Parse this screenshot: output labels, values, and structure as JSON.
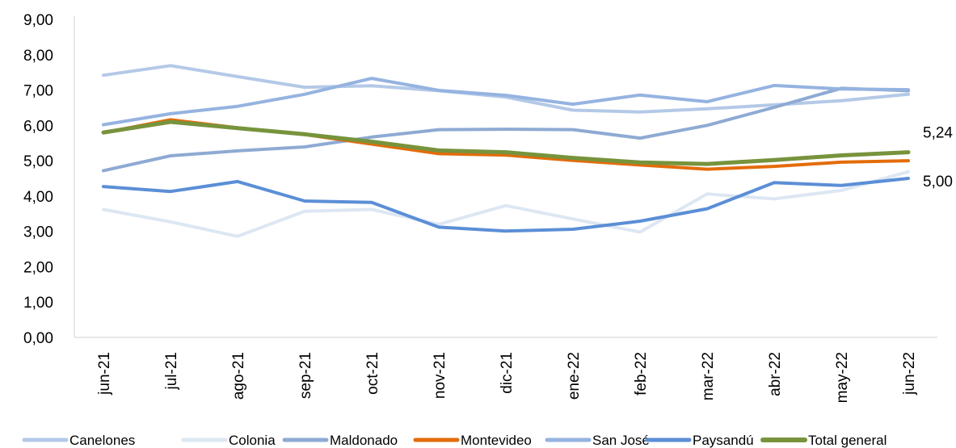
{
  "chart_data": {
    "type": "line",
    "categories": [
      "jun-21",
      "jul-21",
      "ago-21",
      "sep-21",
      "oct-21",
      "nov-21",
      "dic-21",
      "ene-22",
      "feb-22",
      "mar-22",
      "abr-22",
      "may-22",
      "jun-22"
    ],
    "y_ticks": [
      "0,00",
      "1,00",
      "2,00",
      "3,00",
      "4,00",
      "5,00",
      "6,00",
      "7,00",
      "8,00",
      "9,00"
    ],
    "ylim": [
      0,
      9
    ],
    "grid": false,
    "legend_position": "bottom",
    "series": [
      {
        "name": "Canelones",
        "color": "#b4c9e7",
        "width": 4,
        "values": [
          7.42,
          7.69,
          7.38,
          7.08,
          7.12,
          6.98,
          6.8,
          6.43,
          6.38,
          6.47,
          6.58,
          6.7,
          6.88
        ]
      },
      {
        "name": "Colonia",
        "color": "#dde7f3",
        "width": 4,
        "values": [
          3.62,
          3.27,
          2.86,
          3.57,
          3.62,
          3.2,
          3.73,
          3.35,
          2.98,
          4.06,
          3.92,
          4.16,
          4.69
        ]
      },
      {
        "name": "Maldonado",
        "color": "#8eaad3",
        "width": 4,
        "values": [
          4.72,
          5.14,
          5.28,
          5.39,
          5.67,
          5.88,
          5.89,
          5.88,
          5.64,
          6.0,
          6.51,
          7.05,
          6.98
        ]
      },
      {
        "name": "Montevideo",
        "color": "#e36c0a",
        "width": 4,
        "values": [
          5.79,
          6.16,
          5.93,
          5.74,
          5.47,
          5.2,
          5.16,
          5.01,
          4.88,
          4.76,
          4.84,
          4.96,
          5.0
        ]
      },
      {
        "name": "San José",
        "color": "#95b3e0",
        "width": 4,
        "values": [
          6.02,
          6.33,
          6.54,
          6.88,
          7.33,
          6.99,
          6.85,
          6.6,
          6.86,
          6.67,
          7.13,
          7.03,
          7.01
        ]
      },
      {
        "name": "Paysandú",
        "color": "#5b8ed6",
        "width": 4,
        "values": [
          4.27,
          4.13,
          4.41,
          3.86,
          3.82,
          3.12,
          3.01,
          3.06,
          3.29,
          3.64,
          4.38,
          4.3,
          4.5
        ]
      },
      {
        "name": "Total general",
        "color": "#77933c",
        "width": 5,
        "values": [
          5.8,
          6.1,
          5.92,
          5.75,
          5.54,
          5.29,
          5.24,
          5.08,
          4.95,
          4.91,
          5.02,
          5.15,
          5.24
        ]
      }
    ],
    "annotations": [
      {
        "text": "5,24",
        "series": "Total general",
        "index": 12
      },
      {
        "text": "5,00",
        "series": "Montevideo",
        "index": 12
      }
    ]
  }
}
